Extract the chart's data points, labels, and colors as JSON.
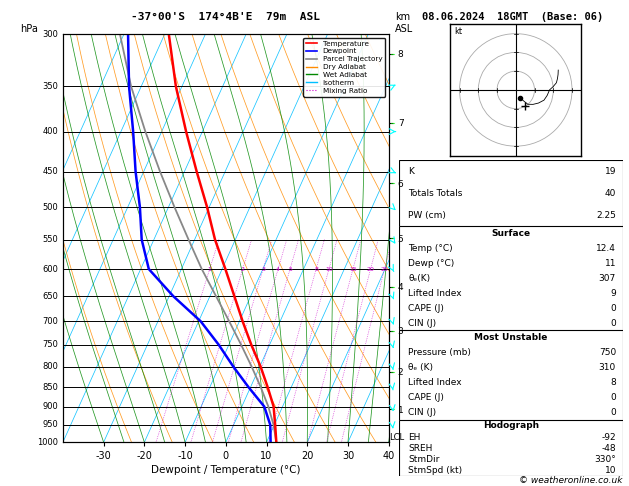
{
  "title_left": "-37°00'S  174°4B'E  79m  ASL",
  "title_right": "08.06.2024  18GMT  (Base: 06)",
  "xlabel": "Dewpoint / Temperature (°C)",
  "pressure_levels": [
    300,
    350,
    400,
    450,
    500,
    550,
    600,
    650,
    700,
    750,
    800,
    850,
    900,
    950,
    1000
  ],
  "temp_ticks": [
    -30,
    -20,
    -10,
    0,
    10,
    20,
    30,
    40
  ],
  "bg_color": "#ffffff",
  "plot_bg": "#ffffff",
  "isotherm_color": "#00bfff",
  "dry_adiabat_color": "#ff8c00",
  "wet_adiabat_color": "#008800",
  "mixing_ratio_color": "#cc00cc",
  "parcel_color": "#888888",
  "temp_color": "#ff0000",
  "dewp_color": "#0000ff",
  "km_levels": [
    1,
    2,
    3,
    4,
    5,
    6,
    7,
    8
  ],
  "km_pressures": [
    907,
    812,
    720,
    632,
    548,
    466,
    390,
    318
  ],
  "mixing_ratio_vals": [
    1,
    2,
    3,
    4,
    5,
    8,
    10,
    15,
    20,
    25
  ],
  "temperature_profile": {
    "pressure": [
      1000,
      950,
      900,
      850,
      800,
      750,
      700,
      650,
      600,
      550,
      500,
      450,
      400,
      350,
      300
    ],
    "temp": [
      12.4,
      10.2,
      7.8,
      4.2,
      0.2,
      -4.5,
      -9.2,
      -14.0,
      -19.2,
      -25.0,
      -30.5,
      -37.0,
      -44.0,
      -51.5,
      -59.0
    ]
  },
  "dewpoint_profile": {
    "pressure": [
      1000,
      950,
      900,
      850,
      800,
      750,
      700,
      650,
      600,
      550,
      500,
      450,
      400,
      350,
      300
    ],
    "dewp": [
      11.0,
      9.0,
      5.5,
      -0.5,
      -6.5,
      -12.5,
      -19.5,
      -29.0,
      -38.0,
      -43.0,
      -47.0,
      -52.0,
      -57.0,
      -63.0,
      -69.0
    ]
  },
  "parcel_profile": {
    "pressure": [
      1000,
      950,
      900,
      850,
      800,
      750,
      700,
      650,
      600,
      550,
      500,
      450,
      400,
      350,
      300
    ],
    "temp": [
      12.4,
      9.8,
      6.5,
      2.5,
      -2.0,
      -7.0,
      -12.5,
      -18.5,
      -25.0,
      -31.5,
      -38.5,
      -46.0,
      -54.0,
      -62.5,
      -71.0
    ]
  },
  "table_K": 19,
  "table_TT": 40,
  "table_PW": 2.25,
  "surf_temp": 12.4,
  "surf_dewp": 11,
  "surf_thetae": 307,
  "surf_li": 9,
  "surf_cape": 0,
  "surf_cin": 0,
  "mu_press": 750,
  "mu_thetae": 310,
  "mu_li": 8,
  "mu_cape": 0,
  "mu_cin": 0,
  "hodo_eh": -92,
  "hodo_sreh": -48,
  "hodo_stmdir": "330°",
  "hodo_stmspd": 10,
  "footer": "© weatheronline.co.uk"
}
